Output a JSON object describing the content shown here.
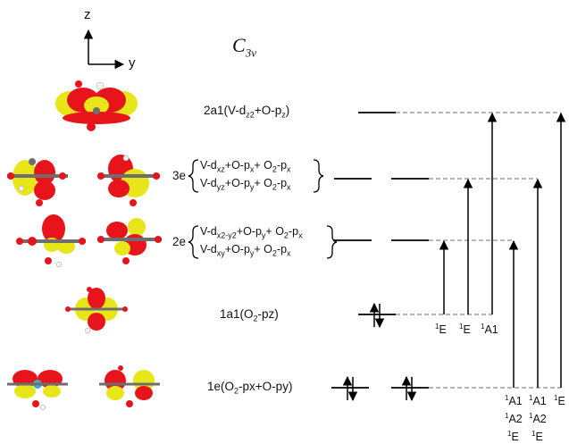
{
  "axes": {
    "z": "z",
    "y": "y"
  },
  "point_group": {
    "main": "C",
    "sub": "3v"
  },
  "orbitals": {
    "a1_top": {
      "name": "2a1",
      "text_a": "(V-d",
      "sub_a": "z2",
      "text_b": "+O-p",
      "sub_b": "z",
      "close": ")"
    },
    "e3": {
      "name": "3e",
      "line1": {
        "t1": "V-d",
        "s1": "xz",
        "t2": "+O-p",
        "s2": "x",
        "t3": "+ O",
        "s3": "2",
        "t4": "-p",
        "s4": "x"
      },
      "line2": {
        "t1": "V-d",
        "s1": "yz",
        "t2": "+O-p",
        "s2": "y",
        "t3": "+ O",
        "s3": "2",
        "t4": "-p",
        "s4": "x"
      }
    },
    "e2": {
      "name": "2e",
      "line1": {
        "t1": "V-d",
        "s1": "x2-y2",
        "t2": "+O-p",
        "s2": "y",
        "t3": "+ O",
        "s3": "2",
        "t4": "-p",
        "s4": "x"
      },
      "line2": {
        "t1": "V-d",
        "s1": "xy",
        "t2": "+O-p",
        "s2": "y",
        "t3": "+ O",
        "s3": "2",
        "t4": "-p",
        "s4": "x"
      }
    },
    "a1_mid": {
      "name": "1a1",
      "text_a": "(O",
      "sub_a": "2",
      "text_b": "-pz)"
    },
    "e1": {
      "name": "1e",
      "text_a": "(O",
      "sub_a": "2",
      "text_b": "-px+O-py)"
    }
  },
  "transitions": {
    "t1": {
      "sup": "1",
      "label": "E"
    },
    "t2": {
      "sup": "1",
      "label": "E"
    },
    "t3": {
      "sup": "1",
      "label": "A1"
    },
    "t4": [
      {
        "sup": "1",
        "label": "A1"
      },
      {
        "sup": "1",
        "label": "A2"
      },
      {
        "sup": "1",
        "label": "E"
      }
    ],
    "t5": [
      {
        "sup": "1",
        "label": "A1"
      },
      {
        "sup": "1",
        "label": "A2"
      },
      {
        "sup": "1",
        "label": "E"
      }
    ],
    "t6": {
      "sup": "1",
      "label": "E"
    }
  },
  "colors": {
    "lobe_red": "#e8141c",
    "lobe_yellow": "#e6e619",
    "carbon": "#6e6e6e",
    "hydrogen": "#f2f2f2",
    "vanadium": "#3ab0c8",
    "dashed": "#8c8c8c",
    "line": "#000000"
  }
}
